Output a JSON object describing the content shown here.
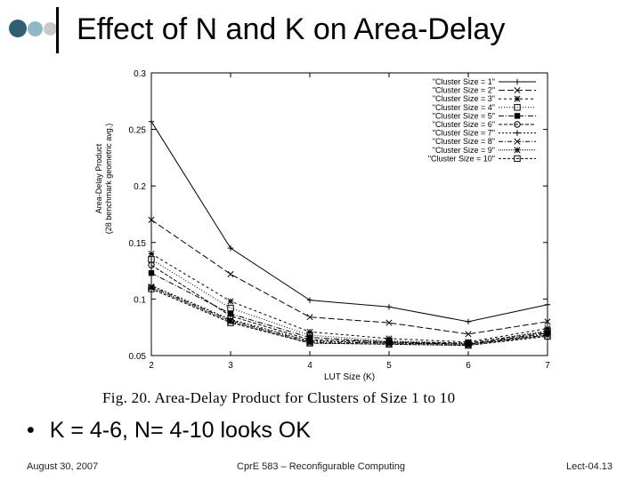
{
  "slide": {
    "title": "Effect of N and K on Area-Delay",
    "caption": "Fig. 20.   Area-Delay Product for Clusters of Size 1 to 10",
    "bullet_marker": "•",
    "bullet": "K = 4-6, N= 4-10 looks OK",
    "footer_date": "August 30, 2007",
    "footer_course": "CprE 583 – Reconfigurable Computing",
    "footer_lecture": "Lect-04.13",
    "logo_colors": [
      "#2e5f73",
      "#8fb9c7",
      "#c9c9c9"
    ]
  },
  "chart_data": {
    "type": "line",
    "xlabel": "LUT Size (K)",
    "ylabel": "Area-Delay Product",
    "ylabel2": "(28 benchmark geometric avg.)",
    "x": [
      2,
      3,
      4,
      5,
      6,
      7
    ],
    "xlim": [
      2,
      7
    ],
    "ylim": [
      0.05,
      0.3
    ],
    "xticks": [
      "2",
      "3",
      "4",
      "5",
      "6",
      "7"
    ],
    "yticks": [
      "0.05",
      "0.1",
      "0.15",
      "0.2",
      "0.25",
      "0.3"
    ],
    "legend_position": "top-right",
    "series": [
      {
        "name": "\"Cluster Size = 1\"",
        "values": [
          0.257,
          0.145,
          0.099,
          0.093,
          0.08,
          0.095
        ],
        "marker": "plus",
        "dash": ""
      },
      {
        "name": "\"Cluster Size = 2\"",
        "values": [
          0.17,
          0.122,
          0.084,
          0.079,
          0.069,
          0.08
        ],
        "marker": "x",
        "dash": "7,3"
      },
      {
        "name": "\"Cluster Size = 3\"",
        "values": [
          0.14,
          0.098,
          0.071,
          0.065,
          0.062,
          0.074
        ],
        "marker": "star",
        "dash": "3,3"
      },
      {
        "name": "\"Cluster Size = 4\"",
        "values": [
          0.135,
          0.092,
          0.068,
          0.063,
          0.061,
          0.072
        ],
        "marker": "square-open",
        "dash": "1,2"
      },
      {
        "name": "\"Cluster Size = 5\"",
        "values": [
          0.123,
          0.087,
          0.066,
          0.062,
          0.06,
          0.07
        ],
        "marker": "square-filled",
        "dash": "6,2,1,2"
      },
      {
        "name": "\"Cluster Size = 6\"",
        "values": [
          0.13,
          0.085,
          0.064,
          0.062,
          0.061,
          0.071
        ],
        "marker": "circle-open",
        "dash": "4,2"
      },
      {
        "name": "\"Cluster Size = 7\"",
        "values": [
          0.112,
          0.082,
          0.063,
          0.061,
          0.06,
          0.069
        ],
        "marker": "plus",
        "dash": "2,2"
      },
      {
        "name": "\"Cluster Size = 8\"",
        "values": [
          0.111,
          0.081,
          0.062,
          0.061,
          0.06,
          0.068
        ],
        "marker": "x",
        "dash": "5,2,1,2"
      },
      {
        "name": "\"Cluster Size = 9\"",
        "values": [
          0.11,
          0.08,
          0.061,
          0.06,
          0.059,
          0.068
        ],
        "marker": "star",
        "dash": "1,1"
      },
      {
        "name": "\"Cluster Size = 10\"",
        "values": [
          0.109,
          0.079,
          0.061,
          0.06,
          0.059,
          0.067
        ],
        "marker": "square-open",
        "dash": "3,2"
      }
    ]
  }
}
